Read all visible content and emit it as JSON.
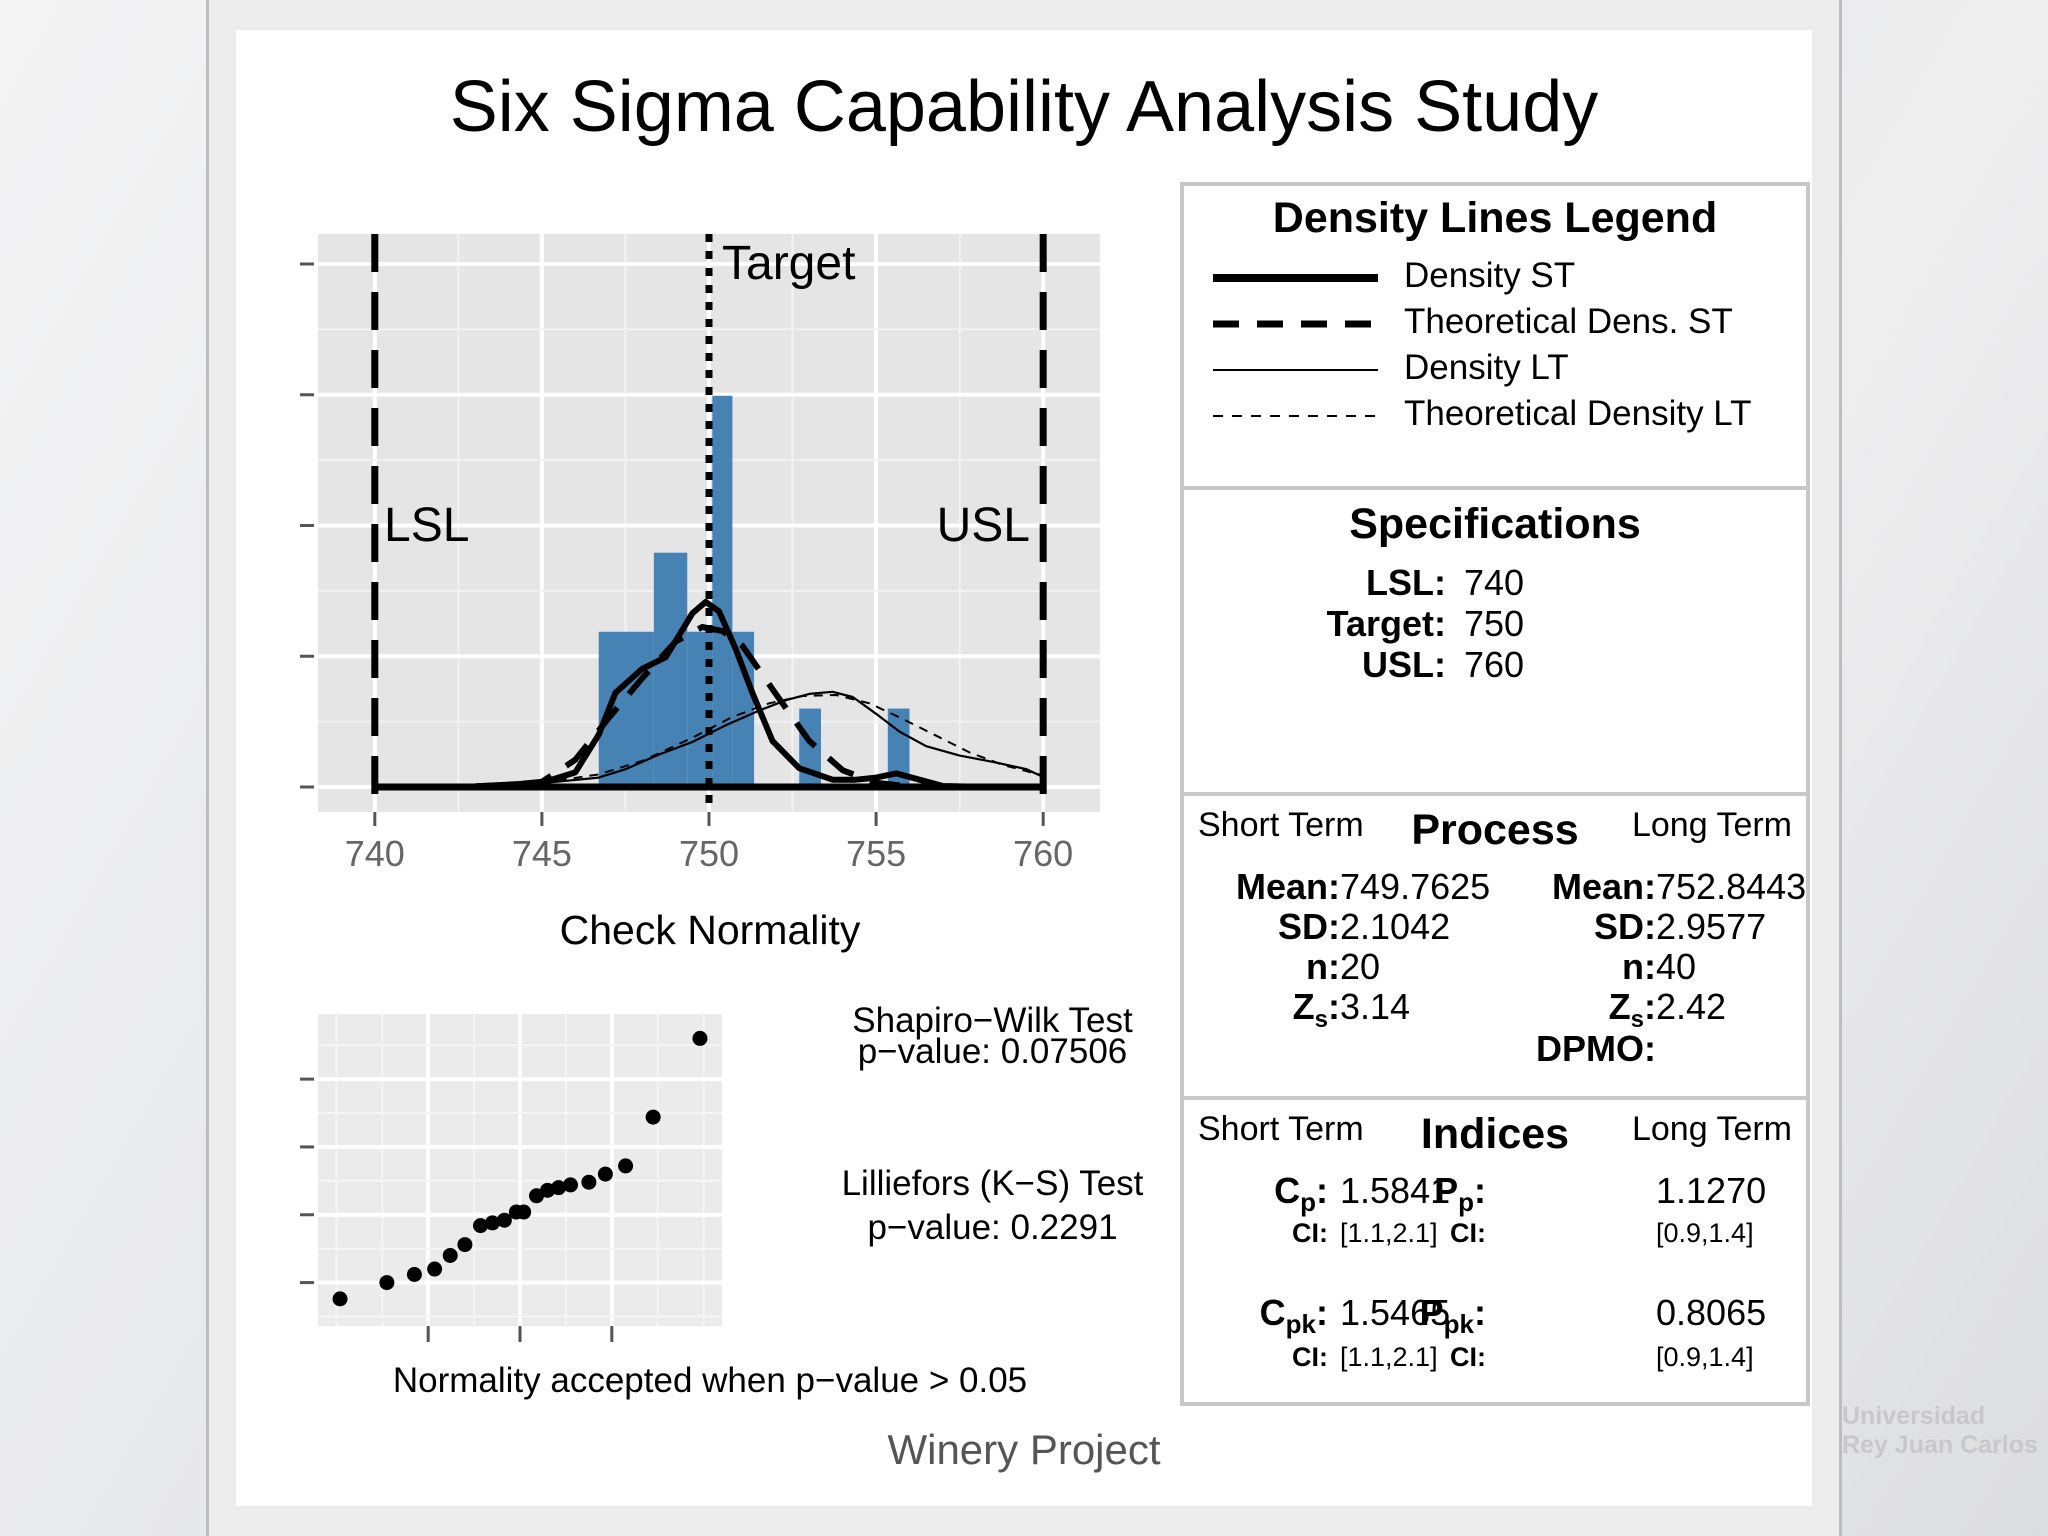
{
  "title": "Six Sigma Capability Analysis Study",
  "footer": "Winery Project",
  "chart_data": [
    {
      "type": "bar",
      "name": "capability histogram",
      "x_ticks": [
        740,
        745,
        750,
        755,
        760
      ],
      "xlim": [
        738.3,
        761.7
      ],
      "ylim": [
        0,
        0.25
      ],
      "bins": [
        {
          "x0": 746.7,
          "x1": 748.35,
          "v": 0.0742
        },
        {
          "x0": 748.35,
          "x1": 749.35,
          "v": 0.112
        },
        {
          "x0": 749.35,
          "x1": 750.1,
          "v": 0.0742
        },
        {
          "x0": 750.1,
          "x1": 750.7,
          "v": 0.187
        },
        {
          "x0": 750.7,
          "x1": 751.35,
          "v": 0.0742
        },
        {
          "x0": 752.7,
          "x1": 753.35,
          "v": 0.0375
        },
        {
          "x0": 755.35,
          "x1": 756.0,
          "v": 0.0375
        }
      ],
      "density_st": [
        [
          740,
          0
        ],
        [
          743,
          0.0003
        ],
        [
          745,
          0.002
        ],
        [
          746,
          0.007
        ],
        [
          746.7,
          0.025
        ],
        [
          747.2,
          0.045
        ],
        [
          748,
          0.0565
        ],
        [
          748.7,
          0.062
        ],
        [
          749.2,
          0.075
        ],
        [
          749.5,
          0.083
        ],
        [
          749.9,
          0.0885
        ],
        [
          750.3,
          0.084
        ],
        [
          750.8,
          0.066
        ],
        [
          751.3,
          0.045
        ],
        [
          751.9,
          0.022
        ],
        [
          752.7,
          0.009
        ],
        [
          753.7,
          0.0035
        ],
        [
          754.4,
          0.0035
        ],
        [
          755,
          0.0045
        ],
        [
          755.6,
          0.0065
        ],
        [
          756.3,
          0.0035
        ],
        [
          757,
          0.0005
        ],
        [
          758,
          0.0001
        ],
        [
          760,
          0
        ]
      ],
      "theoretical_st": [
        [
          743,
          0.0003
        ],
        [
          744,
          0.001
        ],
        [
          745,
          0.0025
        ],
        [
          746,
          0.013
        ],
        [
          747,
          0.033
        ],
        [
          748,
          0.052
        ],
        [
          749,
          0.0695
        ],
        [
          749.8,
          0.0765
        ],
        [
          750.4,
          0.0745
        ],
        [
          751,
          0.0675
        ],
        [
          752,
          0.0445
        ],
        [
          753,
          0.022
        ],
        [
          754,
          0.008
        ],
        [
          755,
          0.002
        ],
        [
          756,
          0.0003
        ]
      ],
      "density_lt": [
        [
          741,
          0
        ],
        [
          743,
          0.0003
        ],
        [
          745,
          0.0018
        ],
        [
          746.7,
          0.0045
        ],
        [
          747.5,
          0.0085
        ],
        [
          748.5,
          0.0155
        ],
        [
          749.5,
          0.0215
        ],
        [
          750.5,
          0.0295
        ],
        [
          751.5,
          0.0365
        ],
        [
          752.3,
          0.0415
        ],
        [
          753,
          0.0445
        ],
        [
          753.7,
          0.0455
        ],
        [
          754.3,
          0.043
        ],
        [
          755,
          0.035
        ],
        [
          755.7,
          0.0265
        ],
        [
          756.5,
          0.0195
        ],
        [
          757.5,
          0.015
        ],
        [
          758.5,
          0.012
        ],
        [
          759.5,
          0.0085
        ],
        [
          760,
          0.0048
        ]
      ],
      "theoretical_lt": [
        [
          745,
          0.002
        ],
        [
          746.7,
          0.006
        ],
        [
          748,
          0.0125
        ],
        [
          749.5,
          0.0235
        ],
        [
          750.7,
          0.0335
        ],
        [
          751.8,
          0.04
        ],
        [
          752.8,
          0.0435
        ],
        [
          753.8,
          0.044
        ],
        [
          754.8,
          0.04
        ],
        [
          755.8,
          0.0325
        ],
        [
          756.8,
          0.0245
        ],
        [
          757.8,
          0.0165
        ],
        [
          758.8,
          0.0105
        ],
        [
          760,
          0.0055
        ]
      ],
      "lines": {
        "LSL": 740,
        "Target": 750,
        "USL": 760
      },
      "line_labels": {
        "LSL": "LSL",
        "Target": "Target",
        "USL": "USL"
      },
      "bar_color": "#4682b4"
    },
    {
      "type": "scatter",
      "name": "normal q-q plot",
      "title": "Check Normality",
      "points": [
        [
          -1.96,
          746.7
        ],
        [
          -1.45,
          747.3
        ],
        [
          -1.15,
          747.6
        ],
        [
          -0.93,
          747.8
        ],
        [
          -0.76,
          748.3
        ],
        [
          -0.6,
          748.7
        ],
        [
          -0.43,
          749.4
        ],
        [
          -0.3,
          749.5
        ],
        [
          -0.17,
          749.6
        ],
        [
          -0.04,
          749.9
        ],
        [
          0.04,
          749.9
        ],
        [
          0.18,
          750.5
        ],
        [
          0.3,
          750.7
        ],
        [
          0.42,
          750.8
        ],
        [
          0.55,
          750.9
        ],
        [
          0.75,
          751.0
        ],
        [
          0.93,
          751.3
        ],
        [
          1.15,
          751.6
        ],
        [
          1.45,
          753.4
        ],
        [
          1.96,
          756.3
        ]
      ],
      "xlim": [
        -2.2,
        2.2
      ],
      "ylim": [
        745.7,
        757.2
      ],
      "x_ticks": [
        -1,
        0,
        1
      ],
      "y_ticks": [
        747.3,
        749.8,
        752.3,
        754.8
      ]
    }
  ],
  "normality": {
    "sw_title": "Shapiro−Wilk Test",
    "sw_pvalue": "p−value:  0.07506",
    "lk_title": "Lilliefors (K−S) Test",
    "lk_pvalue": "p−value:  0.2291",
    "note": "Normality accepted when p−value > 0.05"
  },
  "legend": {
    "title": "Density Lines Legend",
    "items": [
      "Density ST",
      "Theoretical Dens. ST",
      "Density LT",
      "Theoretical Density LT"
    ]
  },
  "specifications": {
    "title": "Specifications",
    "lsl_label": "LSL:",
    "lsl_value": "740",
    "target_label": "Target:",
    "target_value": "750",
    "usl_label": "USL:",
    "usl_value": "760"
  },
  "process": {
    "title": "Process",
    "short_term": "Short Term",
    "long_term": "Long Term",
    "mean_label": "Mean:",
    "sd_label": "SD:",
    "n_label": "n:",
    "zs_label": "Z",
    "zs_sub": "s",
    "st_mean": "749.7625",
    "st_sd": "2.1042",
    "st_n": "20",
    "st_zs": "3.14",
    "lt_mean": "752.8443",
    "lt_sd": "2.9577",
    "lt_n": "40",
    "lt_zs": "2.42",
    "dpmo_label": "DPMO:"
  },
  "indices": {
    "title": "Indices",
    "short_term": "Short Term",
    "long_term": "Long Term",
    "cp_base": "C",
    "cp_sub": "p",
    "cp": "1.5841",
    "cp_ci": "[1.1,2.1]",
    "cpk_base": "C",
    "cpk_sub": "pk",
    "cpk": "1.5465",
    "cpk_ci": "[1.1,2.1]",
    "pp_base": "P",
    "pp_sub": "p",
    "pp": "1.1270",
    "pp_ci": "[0.9,1.4]",
    "ppk_base": "P",
    "ppk_sub": "pk",
    "ppk": "0.8065",
    "ppk_ci": "[0.9,1.4]",
    "ci_label": "CI:"
  },
  "watermark": {
    "line1": "Universidad",
    "line2": "Rey Juan Carlos"
  }
}
